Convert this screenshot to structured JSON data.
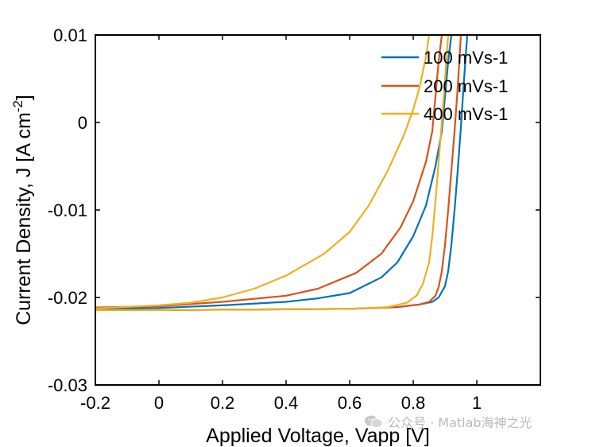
{
  "chart_data": {
    "type": "line",
    "title": "",
    "xlabel": "Applied Voltage, Vapp [V]",
    "ylabel_main": "Current Density, J [A cm",
    "ylabel_sup": "-2",
    "ylabel_end": "]",
    "xlim": [
      -0.2,
      1.2
    ],
    "ylim": [
      -0.03,
      0.01
    ],
    "xticks": [
      -0.2,
      0,
      0.2,
      0.4,
      0.6,
      0.8,
      1
    ],
    "xtick_labels": [
      "-0.2",
      "0",
      "0.2",
      "0.4",
      "0.6",
      "0.8",
      "1"
    ],
    "yticks": [
      -0.03,
      -0.02,
      -0.01,
      0,
      0.01
    ],
    "ytick_labels": [
      "-0.03",
      "-0.02",
      "-0.01",
      "0",
      "0.01"
    ],
    "legend_position": "top-right",
    "series": [
      {
        "name": "100 mVs-1",
        "color": "#0072BD",
        "forward": [
          [
            -0.2,
            -0.02145
          ],
          [
            0,
            -0.02145
          ],
          [
            0.2,
            -0.0214
          ],
          [
            0.4,
            -0.02135
          ],
          [
            0.6,
            -0.0213
          ],
          [
            0.75,
            -0.0211
          ],
          [
            0.82,
            -0.0208
          ],
          [
            0.86,
            -0.0205
          ],
          [
            0.88,
            -0.02
          ],
          [
            0.9,
            -0.0187
          ],
          [
            0.91,
            -0.017
          ],
          [
            0.92,
            -0.014
          ],
          [
            0.93,
            -0.01
          ],
          [
            0.94,
            -0.0055
          ],
          [
            0.95,
            -0.0005
          ],
          [
            0.96,
            0.005
          ],
          [
            0.97,
            0.01
          ]
        ],
        "reverse": [
          [
            0.92,
            0.01
          ],
          [
            0.91,
            0.007
          ],
          [
            0.9,
            0.003
          ],
          [
            0.89,
            -0.001
          ],
          [
            0.87,
            -0.005
          ],
          [
            0.84,
            -0.0095
          ],
          [
            0.8,
            -0.013
          ],
          [
            0.75,
            -0.016
          ],
          [
            0.7,
            -0.0177
          ],
          [
            0.6,
            -0.0195
          ],
          [
            0.5,
            -0.0201
          ],
          [
            0.4,
            -0.0205
          ],
          [
            0.2,
            -0.0209
          ],
          [
            0,
            -0.0212
          ],
          [
            -0.2,
            -0.02125
          ]
        ]
      },
      {
        "name": "200 mVs-1",
        "color": "#D95319",
        "forward": [
          [
            -0.2,
            -0.02145
          ],
          [
            0,
            -0.02145
          ],
          [
            0.2,
            -0.0214
          ],
          [
            0.4,
            -0.02135
          ],
          [
            0.6,
            -0.0213
          ],
          [
            0.75,
            -0.0211
          ],
          [
            0.82,
            -0.0208
          ],
          [
            0.85,
            -0.0205
          ],
          [
            0.87,
            -0.0198
          ],
          [
            0.88,
            -0.0188
          ],
          [
            0.89,
            -0.017
          ],
          [
            0.9,
            -0.014
          ],
          [
            0.91,
            -0.01
          ],
          [
            0.92,
            -0.0055
          ],
          [
            0.93,
            -0.001
          ],
          [
            0.94,
            0.004
          ],
          [
            0.95,
            0.01
          ]
        ],
        "reverse": [
          [
            0.89,
            0.01
          ],
          [
            0.88,
            0.007
          ],
          [
            0.87,
            0.003
          ],
          [
            0.86,
            -0.001
          ],
          [
            0.84,
            -0.0045
          ],
          [
            0.8,
            -0.009
          ],
          [
            0.76,
            -0.012
          ],
          [
            0.7,
            -0.015
          ],
          [
            0.62,
            -0.0172
          ],
          [
            0.5,
            -0.019
          ],
          [
            0.4,
            -0.0198
          ],
          [
            0.2,
            -0.0205
          ],
          [
            0,
            -0.021
          ],
          [
            -0.2,
            -0.02115
          ]
        ]
      },
      {
        "name": "400 mVs-1",
        "color": "#EDB120",
        "forward": [
          [
            -0.2,
            -0.02145
          ],
          [
            0,
            -0.02145
          ],
          [
            0.2,
            -0.0214
          ],
          [
            0.4,
            -0.02135
          ],
          [
            0.6,
            -0.0213
          ],
          [
            0.72,
            -0.0211
          ],
          [
            0.78,
            -0.0206
          ],
          [
            0.81,
            -0.0198
          ],
          [
            0.83,
            -0.0185
          ],
          [
            0.85,
            -0.016
          ],
          [
            0.86,
            -0.013
          ],
          [
            0.87,
            -0.009
          ],
          [
            0.88,
            -0.0045
          ],
          [
            0.89,
            0.0
          ],
          [
            0.9,
            0.005
          ],
          [
            0.91,
            0.01
          ]
        ],
        "reverse": [
          [
            0.85,
            0.01
          ],
          [
            0.84,
            0.0075
          ],
          [
            0.82,
            0.004
          ],
          [
            0.8,
            0.0015
          ],
          [
            0.77,
            -0.0015
          ],
          [
            0.72,
            -0.0055
          ],
          [
            0.66,
            -0.0095
          ],
          [
            0.6,
            -0.0125
          ],
          [
            0.52,
            -0.015
          ],
          [
            0.4,
            -0.0175
          ],
          [
            0.3,
            -0.019
          ],
          [
            0.2,
            -0.02
          ],
          [
            0.1,
            -0.0206
          ],
          [
            0,
            -0.0209
          ],
          [
            -0.2,
            -0.02125
          ]
        ]
      }
    ]
  },
  "watermark": {
    "text": "公众号 · Matlab海神之光"
  }
}
